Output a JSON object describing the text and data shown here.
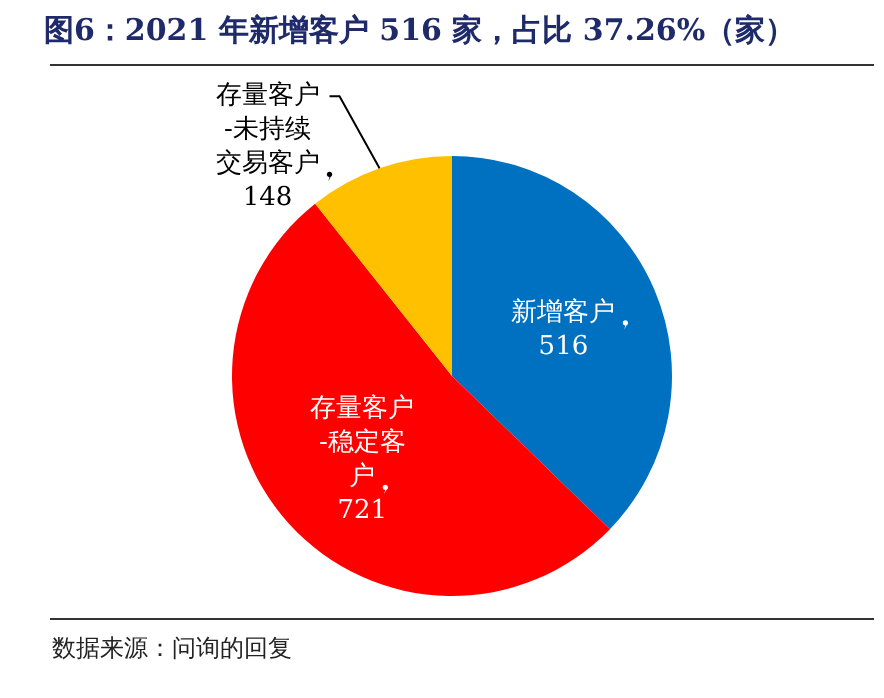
{
  "chart_data": {
    "type": "pie",
    "title": "图6：2021 年新增客户 516 家，占比 37.26%（家）",
    "categories": [
      "新增客户",
      "存量客户-稳定客户",
      "存量客户-未持续交易客户"
    ],
    "values": [
      516,
      721,
      148
    ],
    "colors": [
      "#0070c0",
      "#ff0000",
      "#ffc000"
    ],
    "data_labels": true,
    "legend": false,
    "annotations": [
      "数据来源：问询的回复"
    ]
  }
}
